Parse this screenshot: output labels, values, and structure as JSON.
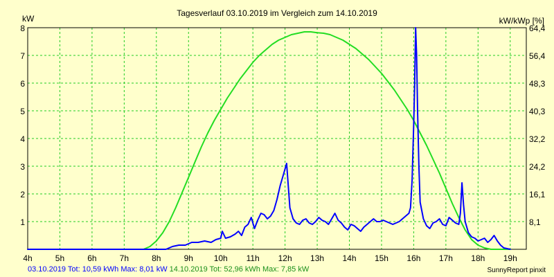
{
  "chart_data": {
    "type": "line",
    "title": "Tagesverlauf 03.10.2019 im Vergleich zum 14.10.2019",
    "ylabel_left": "kW",
    "ylabel_right": "kW/kWp [%]",
    "xlim": [
      4,
      19.5
    ],
    "ylim": [
      0,
      8
    ],
    "grid": true,
    "x_ticks": [
      4,
      5,
      6,
      7,
      8,
      9,
      10,
      11,
      12,
      13,
      14,
      15,
      16,
      17,
      18,
      19
    ],
    "x_tick_labels": [
      "4h",
      "5h",
      "6h",
      "7h",
      "8h",
      "9h",
      "10h",
      "11h",
      "12h",
      "13h",
      "14h",
      "15h",
      "16h",
      "17h",
      "18h",
      "19h"
    ],
    "y_ticks_left": [
      1,
      2,
      3,
      4,
      5,
      6,
      7,
      8
    ],
    "y_tick_labels_left": [
      "1",
      "2",
      "3",
      "4",
      "5",
      "6",
      "7",
      "8"
    ],
    "y_tick_labels_right": [
      "8,1",
      "16,1",
      "24,2",
      "32,2",
      "40,3",
      "48,3",
      "56,4",
      "64,4"
    ],
    "series": [
      {
        "color": "#0000ff",
        "x": [
          4.0,
          8.3,
          8.5,
          8.7,
          8.9,
          9.1,
          9.3,
          9.5,
          9.7,
          9.85,
          10.0,
          10.05,
          10.15,
          10.3,
          10.45,
          10.55,
          10.65,
          10.75,
          10.85,
          10.95,
          11.05,
          11.15,
          11.25,
          11.35,
          11.45,
          11.55,
          11.65,
          11.75,
          11.85,
          11.95,
          12.05,
          12.15,
          12.25,
          12.35,
          12.45,
          12.55,
          12.65,
          12.75,
          12.85,
          12.95,
          13.05,
          13.15,
          13.25,
          13.35,
          13.45,
          13.55,
          13.65,
          13.75,
          13.85,
          13.95,
          14.05,
          14.15,
          14.25,
          14.35,
          14.45,
          14.55,
          14.65,
          14.75,
          14.85,
          14.95,
          15.05,
          15.15,
          15.25,
          15.35,
          15.45,
          15.55,
          15.65,
          15.75,
          15.85,
          15.9,
          15.95,
          16.0,
          16.03,
          16.06,
          16.09,
          16.12,
          16.16,
          16.2,
          16.3,
          16.4,
          16.5,
          16.6,
          16.7,
          16.8,
          16.9,
          17.0,
          17.1,
          17.2,
          17.3,
          17.4,
          17.45,
          17.5,
          17.55,
          17.6,
          17.7,
          17.8,
          17.9,
          18.0,
          18.1,
          18.2,
          18.3,
          18.4,
          18.5,
          18.6,
          18.7,
          18.8,
          19.0
        ],
        "y": [
          0,
          0,
          0.1,
          0.15,
          0.15,
          0.25,
          0.25,
          0.3,
          0.25,
          0.35,
          0.4,
          0.65,
          0.4,
          0.45,
          0.55,
          0.65,
          0.5,
          0.8,
          0.9,
          1.15,
          0.75,
          1.05,
          1.3,
          1.25,
          1.1,
          1.2,
          1.4,
          1.8,
          2.3,
          2.7,
          3.1,
          1.5,
          1.1,
          0.95,
          0.9,
          1.05,
          1.1,
          0.95,
          0.9,
          1.0,
          1.15,
          1.05,
          1.0,
          0.9,
          1.1,
          1.3,
          1.05,
          0.95,
          0.8,
          0.7,
          0.9,
          0.85,
          0.75,
          0.65,
          0.8,
          0.9,
          1.0,
          1.1,
          1.0,
          1.0,
          1.05,
          1.0,
          0.95,
          0.9,
          0.95,
          1.0,
          1.1,
          1.2,
          1.3,
          1.5,
          2.5,
          4.5,
          6.0,
          8.0,
          7.0,
          5.0,
          3.0,
          1.7,
          1.1,
          0.85,
          0.75,
          0.95,
          1.0,
          1.1,
          0.9,
          0.85,
          1.15,
          1.05,
          0.95,
          0.9,
          1.3,
          2.4,
          1.6,
          1.0,
          0.6,
          0.45,
          0.4,
          0.3,
          0.35,
          0.4,
          0.25,
          0.35,
          0.5,
          0.3,
          0.15,
          0.05,
          0
        ]
      },
      {
        "color": "#22dd22",
        "x": [
          4.0,
          7.6,
          7.8,
          8.0,
          8.2,
          8.4,
          8.6,
          8.8,
          9.0,
          9.2,
          9.4,
          9.6,
          9.8,
          10.0,
          10.2,
          10.4,
          10.6,
          10.8,
          11.0,
          11.2,
          11.4,
          11.6,
          11.8,
          12.0,
          12.2,
          12.4,
          12.6,
          12.8,
          13.0,
          13.2,
          13.4,
          13.6,
          13.8,
          14.0,
          14.2,
          14.4,
          14.6,
          14.8,
          15.0,
          15.2,
          15.4,
          15.6,
          15.8,
          16.0,
          16.2,
          16.4,
          16.6,
          16.8,
          17.0,
          17.2,
          17.4,
          17.6,
          17.8,
          18.0,
          18.2,
          18.4,
          18.6,
          18.8,
          19.0
        ],
        "y": [
          0,
          0,
          0.1,
          0.3,
          0.6,
          1.0,
          1.5,
          2.05,
          2.6,
          3.15,
          3.7,
          4.2,
          4.65,
          5.05,
          5.45,
          5.8,
          6.15,
          6.45,
          6.75,
          7.0,
          7.2,
          7.4,
          7.55,
          7.65,
          7.75,
          7.8,
          7.85,
          7.85,
          7.82,
          7.8,
          7.75,
          7.65,
          7.55,
          7.4,
          7.25,
          7.05,
          6.85,
          6.6,
          6.35,
          6.05,
          5.75,
          5.4,
          5.05,
          4.65,
          4.2,
          3.75,
          3.25,
          2.75,
          2.2,
          1.65,
          1.15,
          0.7,
          0.35,
          0.15,
          0.05,
          0,
          0,
          0,
          0
        ]
      }
    ]
  },
  "footer": {
    "series1_text": "03.10.2019 Tot: 10,59 kWh Max: 8,01 kW",
    "series2_text": "14.10.2019 Tot: 52,96 kWh Max: 7,85 kW",
    "credit": "SunnyReport pinxit"
  }
}
